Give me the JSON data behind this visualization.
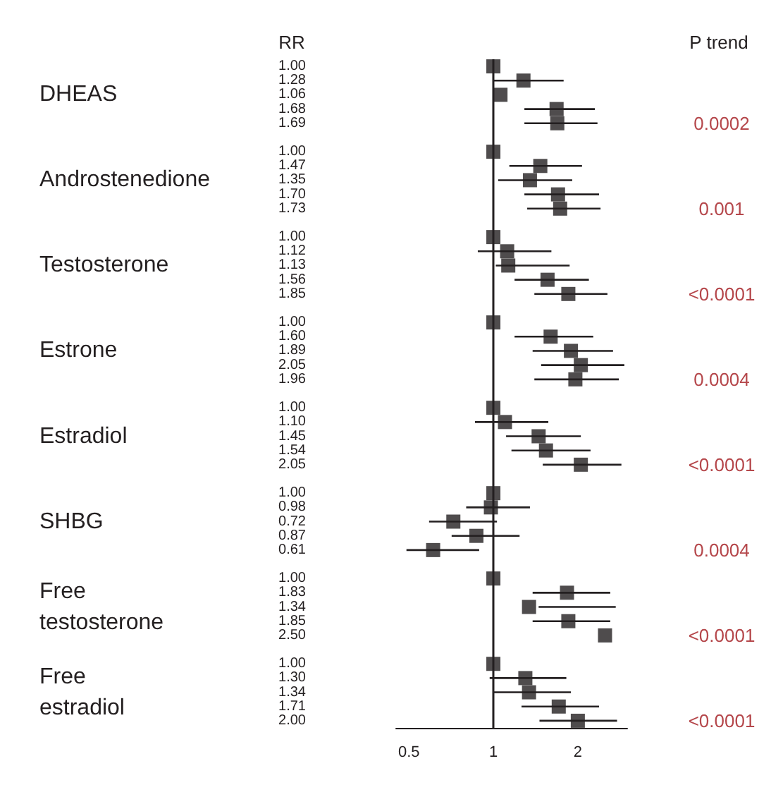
{
  "chart_data": {
    "type": "scatter",
    "orientation": "horizontal",
    "log": "x",
    "xlim": [
      0.45,
      3
    ],
    "xticks": [
      0.5,
      1,
      2
    ],
    "marker": "square",
    "categories": [
      "1.00",
      "1.28",
      "1.06",
      "1.68",
      "1.69",
      null,
      "1.00",
      "1.47",
      "1.35",
      "1.70",
      "1.73",
      null,
      "1.00",
      "1.12",
      "1.13",
      "1.56",
      "1.85",
      null,
      "1.00",
      "1.60",
      "1.89",
      "2.05",
      "1.96",
      null,
      "1.00",
      "1.10",
      "1.45",
      "1.54",
      "2.05",
      null,
      "1.00",
      "0.98",
      "0.72",
      "0.87",
      "0.61",
      null,
      "1.00",
      "1.83",
      "1.34",
      "1.85",
      "2.50",
      null,
      "1.00",
      "1.30",
      "1.34",
      "1.71",
      "2.00"
    ],
    "ref_lines": [
      {
        "axis": "x",
        "value": 1,
        "color": "#231f20"
      }
    ],
    "annotations": [
      "RR",
      "P trend",
      "DHEAS",
      "0.0002",
      "Androstenedione",
      "0.001",
      "Testosterone",
      "<0.0001",
      "Estrone",
      "0.0004",
      "Estradiol",
      "<0.0001",
      "SHBG",
      "0.0004",
      "Free testosterone",
      "<0.0001",
      "Free estradiol",
      "<0.0001"
    ],
    "series": [
      {
        "color": "#231f20",
        "values": [
          1.0,
          1.28,
          1.06,
          1.68,
          1.69,
          null,
          1.0,
          1.47,
          1.35,
          1.7,
          1.73,
          null,
          1.0,
          1.12,
          1.13,
          1.56,
          1.85,
          null,
          1.0,
          1.6,
          1.89,
          2.05,
          1.96,
          null,
          1.0,
          1.1,
          1.45,
          1.54,
          2.05,
          null,
          1.0,
          0.98,
          0.72,
          0.87,
          0.61,
          null,
          1.0,
          1.83,
          1.34,
          1.85,
          2.5,
          null,
          1.0,
          1.3,
          1.34,
          1.71,
          2.0
        ],
        "errors": [
          null,
          [
            1.0,
            1.78
          ],
          null,
          [
            1.29,
            2.3
          ],
          [
            1.29,
            2.35
          ],
          null,
          null,
          [
            1.14,
            2.07
          ],
          [
            1.04,
            1.91
          ],
          [
            1.29,
            2.38
          ],
          [
            1.32,
            2.41
          ],
          null,
          null,
          [
            0.88,
            1.61
          ],
          [
            1.02,
            1.87
          ],
          [
            1.19,
            2.19
          ],
          [
            1.4,
            2.55
          ],
          null,
          null,
          [
            1.19,
            2.27
          ],
          [
            1.38,
            2.67
          ],
          [
            1.48,
            2.93
          ],
          [
            1.4,
            2.8
          ],
          null,
          null,
          [
            0.86,
            1.57
          ],
          [
            1.11,
            2.05
          ],
          [
            1.16,
            2.22
          ],
          [
            1.5,
            2.86
          ],
          null,
          null,
          [
            0.8,
            1.35
          ],
          [
            0.59,
            1.03
          ],
          [
            0.71,
            1.24
          ],
          [
            0.49,
            0.89
          ],
          null,
          null,
          [
            1.38,
            2.61
          ],
          [
            1.45,
            2.73
          ],
          [
            1.38,
            2.61
          ],
          null,
          null,
          null,
          [
            0.97,
            1.82
          ],
          [
            1.0,
            1.89
          ],
          [
            1.26,
            2.38
          ],
          [
            1.46,
            2.76
          ]
        ]
      }
    ]
  }
}
